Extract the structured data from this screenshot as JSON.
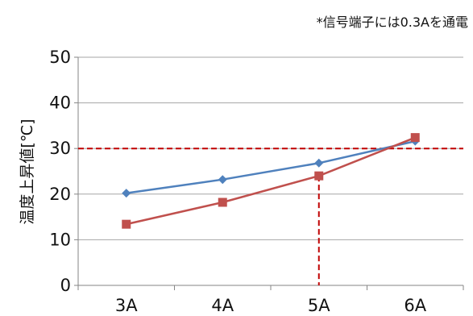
{
  "note": "*信号端子には0.3Aを通電",
  "chart_data": {
    "type": "line",
    "categories": [
      "3A",
      "4A",
      "5A",
      "6A"
    ],
    "title": "",
    "xlabel": "",
    "ylabel": "温度上昇値[℃]",
    "ylim": [
      0,
      50
    ],
    "yticks": [
      0,
      10,
      20,
      30,
      40,
      50
    ],
    "grid": true,
    "series": [
      {
        "color": "#4f81bd",
        "marker": "diamond",
        "values": [
          20.2,
          23.2,
          26.8,
          31.6
        ]
      },
      {
        "color": "#c0504d",
        "marker": "square",
        "values": [
          13.4,
          18.2,
          24.0,
          32.4
        ]
      }
    ],
    "reference_lines": [
      {
        "orientation": "horizontal",
        "y": 30,
        "color": "#c00000",
        "style": "dashed"
      },
      {
        "orientation": "vertical",
        "x": "5A",
        "from_y": 0,
        "to_y": 24.0,
        "color": "#c00000",
        "style": "dashed"
      }
    ]
  }
}
